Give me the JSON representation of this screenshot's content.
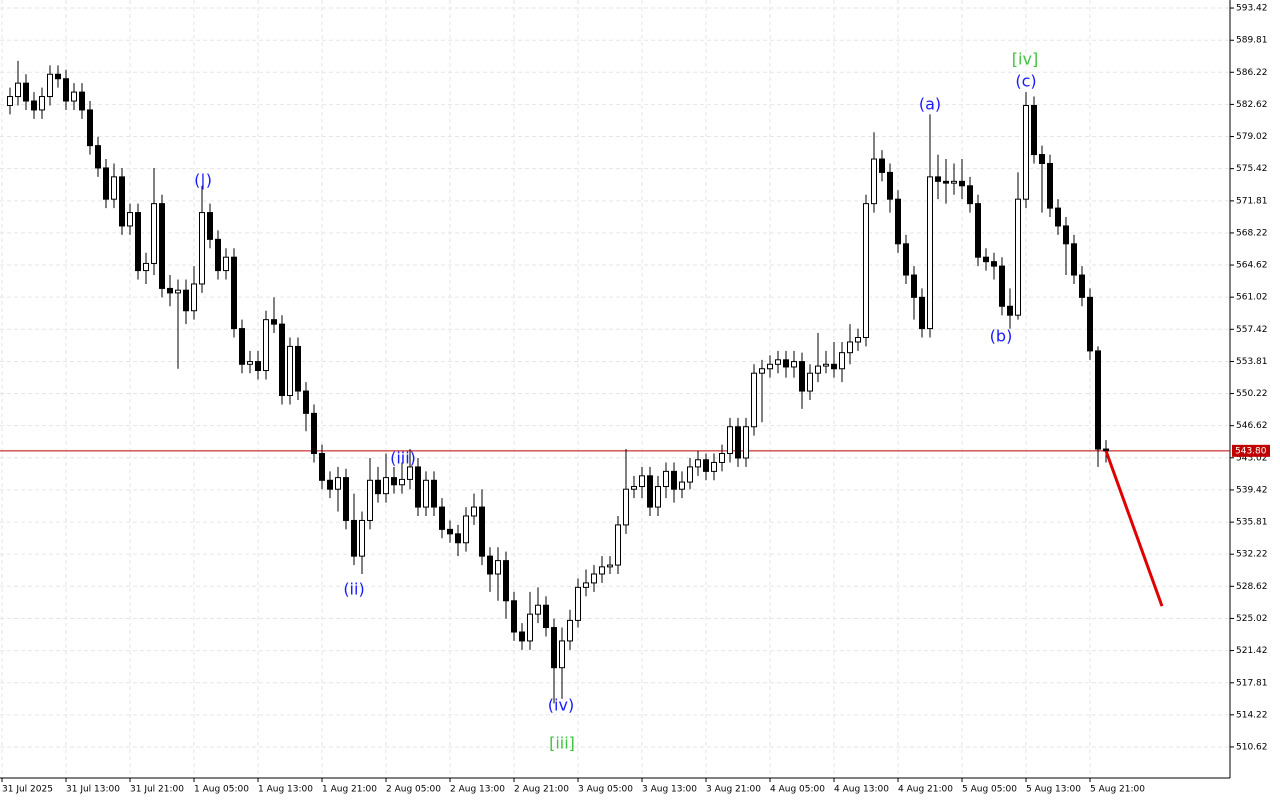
{
  "chart_data": {
    "type": "candlestick",
    "open": [
      582.5,
      583.5,
      585.0,
      583.0,
      582.0,
      583.5,
      586.0,
      585.5,
      583.0,
      584.0,
      582.0,
      578.0,
      575.5,
      572.0,
      574.5,
      569.0,
      570.5,
      564.0,
      564.8,
      571.5,
      562.0,
      561.5,
      561.8,
      559.5,
      562.5,
      570.5,
      567.5,
      564.0,
      565.5,
      557.5,
      553.5,
      553.8,
      552.8,
      558.5,
      558.0,
      550.0,
      555.5,
      550.5,
      548.0,
      543.5,
      540.5,
      539.5,
      540.8,
      536.0,
      532.0,
      536.0,
      540.5,
      539.0,
      540.8,
      540.0,
      540.6,
      542.0,
      537.5,
      540.5,
      537.5,
      535.0,
      534.5,
      533.5,
      536.5,
      537.5,
      532.0,
      530.0,
      531.5,
      527.0,
      523.5,
      522.5,
      525.5,
      526.5,
      524.0,
      519.5,
      522.5,
      524.8,
      528.5,
      529.0,
      530.0,
      530.8,
      531.0,
      535.5,
      539.5,
      539.8,
      541.0,
      537.5,
      539.8,
      541.5,
      539.5,
      540.3,
      542.0,
      542.8,
      541.5,
      542.5,
      543.5,
      546.5,
      543.0,
      546.5,
      552.5,
      553.0,
      553.5,
      554.0,
      553.2,
      553.8,
      550.5,
      552.5,
      553.3,
      553.5,
      553.0,
      554.8,
      556.0,
      556.5,
      571.5,
      576.5,
      575.0,
      572.0,
      567.0,
      563.5,
      561.0,
      557.5,
      574.5,
      574.0,
      573.8,
      574.0,
      573.5,
      571.5,
      565.5,
      565.0,
      564.5,
      560.0,
      559.0,
      572.0,
      582.5,
      577.0,
      576.0,
      571.0,
      569.0,
      567.0,
      563.5,
      561.0,
      555.0,
      544.0
    ],
    "high": [
      584.5,
      587.5,
      586.0,
      584.0,
      584.5,
      587.0,
      587.0,
      586.5,
      585.0,
      585.0,
      583.0,
      579.0,
      576.5,
      576.0,
      575.5,
      571.5,
      571.5,
      566.0,
      575.5,
      572.5,
      563.5,
      563.0,
      563.0,
      564.5,
      573.5,
      571.5,
      568.5,
      566.5,
      566.5,
      558.5,
      555.0,
      555.0,
      559.5,
      561.0,
      559.0,
      556.5,
      556.5,
      551.5,
      549.0,
      544.5,
      541.5,
      542.0,
      541.8,
      539.0,
      537.0,
      543.0,
      542.0,
      543.5,
      542.0,
      542.5,
      544.0,
      543.0,
      541.5,
      541.5,
      538.5,
      536.0,
      535.5,
      537.5,
      539.0,
      539.5,
      533.0,
      533.0,
      532.5,
      528.0,
      524.5,
      528.0,
      528.5,
      527.5,
      525.0,
      524.0,
      526.0,
      529.5,
      530.5,
      531.0,
      532.0,
      532.0,
      536.5,
      544.0,
      541.0,
      542.0,
      542.0,
      541.0,
      542.5,
      542.5,
      541.5,
      543.0,
      543.8,
      543.5,
      543.5,
      544.5,
      547.5,
      547.5,
      547.5,
      553.5,
      554.0,
      554.5,
      555.0,
      555.0,
      555.0,
      554.8,
      553.5,
      557.0,
      555.0,
      556.0,
      556.0,
      558.0,
      557.5,
      572.5,
      579.5,
      577.5,
      576.0,
      573.0,
      568.0,
      564.5,
      562.0,
      581.5,
      577.0,
      576.5,
      576.0,
      576.5,
      574.5,
      572.5,
      566.5,
      566.0,
      565.5,
      562.0,
      575.0,
      584.0,
      583.5,
      578.0,
      577.0,
      572.0,
      570.0,
      568.0,
      564.5,
      562.0,
      555.5,
      545.0
    ],
    "low": [
      581.5,
      582.5,
      582.0,
      581.0,
      581.0,
      582.5,
      584.5,
      582.0,
      582.0,
      581.0,
      577.0,
      574.5,
      571.0,
      571.0,
      568.0,
      568.0,
      563.0,
      562.5,
      563.5,
      561.0,
      560.0,
      553.0,
      558.0,
      558.5,
      561.5,
      566.5,
      563.0,
      563.0,
      556.5,
      552.5,
      552.5,
      551.8,
      551.8,
      557.0,
      549.0,
      549.0,
      549.5,
      546.0,
      542.5,
      539.5,
      538.5,
      537.0,
      535.0,
      531.0,
      530.0,
      535.0,
      538.0,
      538.0,
      539.0,
      539.0,
      539.5,
      536.5,
      536.5,
      536.5,
      534.0,
      533.5,
      532.0,
      532.5,
      535.5,
      531.0,
      528.0,
      527.0,
      525.0,
      522.5,
      521.5,
      521.5,
      524.5,
      523.0,
      515.5,
      516.0,
      521.5,
      524.0,
      527.5,
      528.0,
      529.0,
      530.0,
      530.0,
      534.5,
      538.5,
      538.5,
      536.5,
      536.5,
      538.5,
      538.0,
      538.5,
      539.5,
      541.0,
      540.5,
      540.5,
      541.5,
      542.5,
      542.0,
      542.0,
      545.5,
      547.0,
      552.0,
      552.5,
      552.0,
      552.0,
      548.5,
      549.5,
      551.5,
      552.5,
      552.0,
      551.5,
      553.5,
      555.0,
      555.5,
      570.5,
      574.0,
      570.5,
      566.0,
      562.5,
      558.5,
      556.5,
      556.5,
      572.0,
      571.5,
      572.5,
      572.0,
      570.5,
      564.5,
      564.0,
      563.0,
      559.0,
      557.5,
      558.5,
      571.0,
      576.0,
      570.5,
      570.0,
      568.0,
      563.5,
      562.5,
      560.0,
      554.0,
      542.0,
      542.5
    ],
    "close": [
      583.5,
      585.0,
      583.0,
      582.0,
      583.5,
      586.0,
      585.5,
      583.0,
      584.0,
      582.0,
      578.0,
      575.5,
      572.0,
      574.5,
      569.0,
      570.5,
      564.0,
      564.8,
      571.5,
      562.0,
      561.5,
      561.8,
      559.5,
      562.5,
      570.5,
      567.5,
      564.0,
      565.5,
      557.5,
      553.5,
      553.8,
      552.8,
      558.5,
      558.0,
      550.0,
      555.5,
      550.5,
      548.0,
      543.5,
      540.5,
      539.5,
      540.8,
      536.0,
      532.0,
      536.0,
      540.5,
      539.0,
      540.8,
      540.0,
      540.6,
      542.0,
      537.5,
      540.5,
      537.5,
      535.0,
      534.5,
      533.5,
      536.5,
      537.5,
      532.0,
      530.0,
      531.5,
      527.0,
      523.5,
      522.5,
      525.5,
      526.5,
      524.0,
      519.5,
      522.5,
      524.8,
      528.5,
      529.0,
      530.0,
      530.8,
      531.0,
      535.5,
      539.5,
      539.8,
      541.0,
      537.5,
      539.8,
      541.5,
      539.5,
      540.3,
      542.0,
      542.8,
      541.5,
      542.5,
      543.5,
      546.5,
      543.0,
      546.5,
      552.5,
      553.0,
      553.5,
      554.0,
      553.2,
      553.8,
      550.5,
      552.5,
      553.3,
      553.5,
      553.0,
      554.8,
      556.0,
      556.5,
      571.5,
      576.5,
      575.0,
      572.0,
      567.0,
      563.5,
      561.0,
      557.5,
      574.5,
      574.0,
      573.8,
      574.0,
      573.5,
      571.5,
      565.5,
      565.0,
      564.5,
      560.0,
      559.0,
      572.0,
      582.5,
      577.0,
      576.0,
      571.0,
      569.0,
      567.0,
      563.5,
      561.0,
      555.0,
      544.0,
      543.8
    ],
    "up_color": "#ffffff",
    "down_color": "#000000",
    "xlim": [
      -0.25,
      153.5
    ],
    "xticks": [
      {
        "value": 0,
        "label": "31 Jul 2025"
      },
      {
        "value": 8,
        "label": "31 Jul 13:00"
      },
      {
        "value": 16,
        "label": "31 Jul 21:00"
      },
      {
        "value": 24,
        "label": "1 Aug 05:00"
      },
      {
        "value": 32,
        "label": "1 Aug 13:00"
      },
      {
        "value": 40,
        "label": "1 Aug 21:00"
      },
      {
        "value": 48,
        "label": "2 Aug 05:00"
      },
      {
        "value": 56,
        "label": "2 Aug 13:00"
      },
      {
        "value": 64,
        "label": "2 Aug 21:00"
      },
      {
        "value": 72,
        "label": "3 Aug 05:00"
      },
      {
        "value": 80,
        "label": "3 Aug 13:00"
      },
      {
        "value": 88,
        "label": "3 Aug 21:00"
      },
      {
        "value": 96,
        "label": "4 Aug 05:00"
      },
      {
        "value": 104,
        "label": "4 Aug 13:00"
      },
      {
        "value": 112,
        "label": "4 Aug 21:00"
      },
      {
        "value": 120,
        "label": "5 Aug 05:00"
      },
      {
        "value": 128,
        "label": "5 Aug 13:00"
      },
      {
        "value": 136,
        "label": "5 Aug 21:00"
      }
    ],
    "ylim": [
      507.14,
      594.32
    ],
    "yticks": [
      593.42,
      589.81,
      586.22,
      582.62,
      579.02,
      575.42,
      571.81,
      568.22,
      564.62,
      561.02,
      557.42,
      553.81,
      550.22,
      546.62,
      543.02,
      539.42,
      535.81,
      532.22,
      528.62,
      525.02,
      521.42,
      517.81,
      514.22,
      510.62
    ],
    "grid": true,
    "current_price": {
      "value": 543.8,
      "label": "543.80",
      "color": "#c00000"
    },
    "forecast": {
      "x": [
        138,
        145
      ],
      "values": [
        543.8,
        526.4
      ],
      "color": "#e00000"
    },
    "annotations": [
      {
        "text": "(|)",
        "color": "#1a1aff"
      },
      {
        "text": "(ii)",
        "color": "#1a1aff"
      },
      {
        "text": "(iii)",
        "color": "#1a1aff"
      },
      {
        "text": "(iv)",
        "color": "#1a1aff"
      },
      {
        "text": "[iii]",
        "color": "#3ec43e"
      },
      {
        "text": "(a)",
        "color": "#1a1aff"
      },
      {
        "text": "(b)",
        "color": "#1a1aff"
      },
      {
        "text": "(c)",
        "color": "#1a1aff"
      },
      {
        "text": "[iv]",
        "color": "#3ec43e"
      }
    ]
  }
}
